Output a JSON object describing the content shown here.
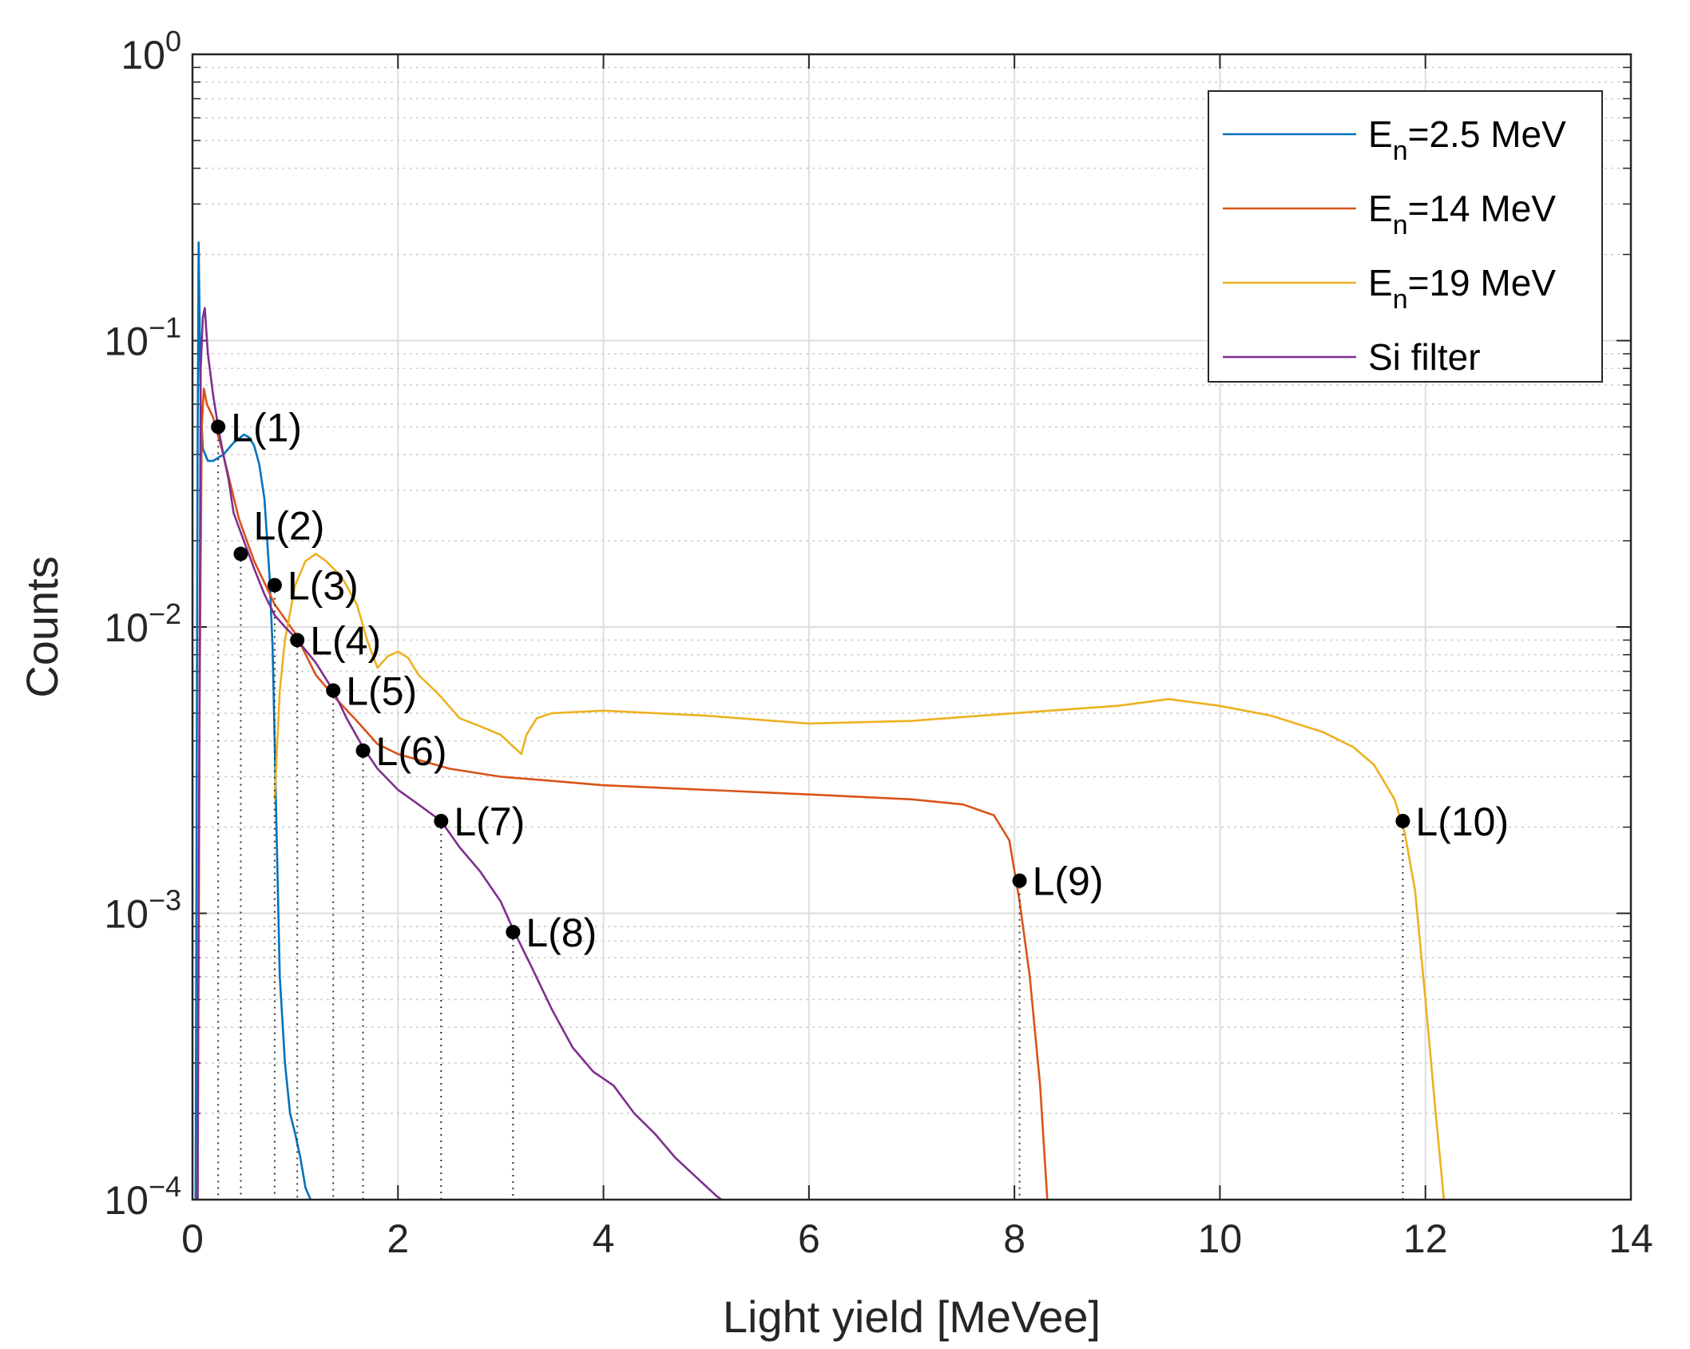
{
  "chart_data": {
    "type": "line",
    "title": "",
    "xlabel": "Light yield [MeVee]",
    "ylabel": "Counts",
    "xlim": [
      0,
      14
    ],
    "ylim": [
      0.0001,
      1
    ],
    "yscale": "log",
    "grid": true,
    "legend_position": "top-right",
    "x_ticks": [
      0,
      2,
      4,
      6,
      8,
      10,
      12,
      14
    ],
    "x_tick_labels": [
      "0",
      "2",
      "4",
      "6",
      "8",
      "10",
      "12",
      "14"
    ],
    "y_ticks": [
      {
        "value": 0.0001,
        "base": "10",
        "exp": "−4"
      },
      {
        "value": 0.001,
        "base": "10",
        "exp": "−3"
      },
      {
        "value": 0.01,
        "base": "10",
        "exp": "−2"
      },
      {
        "value": 0.1,
        "base": "10",
        "exp": "−1"
      },
      {
        "value": 1,
        "base": "10",
        "exp": "0"
      }
    ],
    "series": [
      {
        "name": "2.5 MeV",
        "legend": {
          "base": "E",
          "sub": "n",
          "rest": "=2.5 MeV"
        },
        "color": "#0072BD",
        "x": [
          0.03,
          0.05,
          0.06,
          0.08,
          0.1,
          0.15,
          0.2,
          0.3,
          0.4,
          0.5,
          0.55,
          0.6,
          0.65,
          0.7,
          0.72,
          0.75,
          0.78,
          0.8,
          0.82,
          0.85,
          0.9,
          0.95,
          1.0,
          1.05,
          1.1,
          1.15
        ],
        "y": [
          0.0001,
          0.04,
          0.22,
          0.06,
          0.042,
          0.038,
          0.038,
          0.04,
          0.044,
          0.047,
          0.046,
          0.043,
          0.037,
          0.028,
          0.022,
          0.015,
          0.0085,
          0.004,
          0.0018,
          0.0006,
          0.0003,
          0.0002,
          0.00017,
          0.00014,
          0.00011,
          0.0001
        ]
      },
      {
        "name": "14 MeV",
        "legend": {
          "base": "E",
          "sub": "n",
          "rest": "=14 MeV"
        },
        "color": "#D95319",
        "x": [
          0.05,
          0.07,
          0.09,
          0.11,
          0.14,
          0.2,
          0.3,
          0.45,
          0.6,
          0.8,
          1.0,
          1.2,
          1.4,
          1.6,
          1.8,
          2.0,
          2.5,
          3.0,
          3.5,
          4.0,
          5.0,
          6.0,
          7.0,
          7.5,
          7.8,
          7.95,
          8.05,
          8.15,
          8.25,
          8.32
        ],
        "y": [
          0.0001,
          0.006,
          0.05,
          0.068,
          0.06,
          0.054,
          0.04,
          0.024,
          0.017,
          0.012,
          0.0095,
          0.0068,
          0.0056,
          0.0047,
          0.0039,
          0.0036,
          0.0032,
          0.003,
          0.0029,
          0.0028,
          0.0027,
          0.0026,
          0.0025,
          0.0024,
          0.0022,
          0.0018,
          0.0011,
          0.0006,
          0.00025,
          0.0001
        ]
      },
      {
        "name": "19 MeV",
        "legend": {
          "base": "E",
          "sub": "n",
          "rest": "=19 MeV"
        },
        "color": "#EDB120",
        "x": [
          0.8,
          0.85,
          0.9,
          1.0,
          1.1,
          1.2,
          1.3,
          1.45,
          1.6,
          1.7,
          1.8,
          1.9,
          2.0,
          2.1,
          2.2,
          2.4,
          2.6,
          2.8,
          3.0,
          3.2,
          3.25,
          3.35,
          3.5,
          4.0,
          5.0,
          6.0,
          7.0,
          8.0,
          9.0,
          9.5,
          10.0,
          10.5,
          11.0,
          11.3,
          11.5,
          11.7,
          11.8,
          11.9,
          12.0,
          12.1,
          12.18
        ],
        "y": [
          0.0025,
          0.006,
          0.009,
          0.014,
          0.017,
          0.018,
          0.017,
          0.015,
          0.012,
          0.009,
          0.0072,
          0.0079,
          0.0082,
          0.0078,
          0.0068,
          0.0058,
          0.0048,
          0.0045,
          0.0042,
          0.0036,
          0.0042,
          0.0048,
          0.005,
          0.0051,
          0.0049,
          0.0046,
          0.0047,
          0.005,
          0.0053,
          0.0056,
          0.0053,
          0.0049,
          0.0043,
          0.0038,
          0.0033,
          0.0025,
          0.0019,
          0.0012,
          0.0005,
          0.0002,
          0.0001
        ]
      },
      {
        "name": "Si filter",
        "legend": {
          "base": "Si filter",
          "sub": "",
          "rest": ""
        },
        "color": "#7E2F8E",
        "x": [
          0.05,
          0.08,
          0.1,
          0.12,
          0.15,
          0.2,
          0.25,
          0.3,
          0.35,
          0.4,
          0.5,
          0.6,
          0.7,
          0.8,
          0.9,
          1.0,
          1.2,
          1.37,
          1.5,
          1.66,
          1.8,
          2.0,
          2.2,
          2.42,
          2.6,
          2.8,
          3.0,
          3.12,
          3.3,
          3.5,
          3.7,
          3.9,
          4.1,
          4.3,
          4.5,
          4.7,
          4.9,
          5.1,
          5.15
        ],
        "y": [
          0.0001,
          0.08,
          0.12,
          0.13,
          0.09,
          0.065,
          0.05,
          0.04,
          0.033,
          0.025,
          0.02,
          0.016,
          0.013,
          0.011,
          0.01,
          0.0092,
          0.0075,
          0.006,
          0.0048,
          0.0038,
          0.0032,
          0.0027,
          0.0024,
          0.0021,
          0.0017,
          0.0014,
          0.0011,
          0.00088,
          0.00065,
          0.00046,
          0.00034,
          0.00028,
          0.00025,
          0.0002,
          0.00017,
          0.00014,
          0.00012,
          0.000103,
          0.0001
        ]
      }
    ],
    "annotations": [
      {
        "label": "L(1)",
        "x": 0.25,
        "y": 0.05
      },
      {
        "label": "L(2)",
        "x": 0.47,
        "y": 0.018,
        "label_pos": "above"
      },
      {
        "label": "L(3)",
        "x": 0.8,
        "y": 0.014
      },
      {
        "label": "L(4)",
        "x": 1.02,
        "y": 0.009
      },
      {
        "label": "L(5)",
        "x": 1.37,
        "y": 0.006
      },
      {
        "label": "L(6)",
        "x": 1.66,
        "y": 0.0037
      },
      {
        "label": "L(7)",
        "x": 2.42,
        "y": 0.0021
      },
      {
        "label": "L(8)",
        "x": 3.12,
        "y": 0.00086
      },
      {
        "label": "L(9)",
        "x": 8.05,
        "y": 0.0013
      },
      {
        "label": "L(10)",
        "x": 11.78,
        "y": 0.0021
      }
    ]
  }
}
